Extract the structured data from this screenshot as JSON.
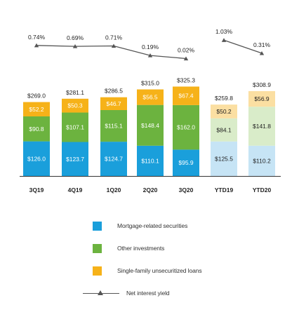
{
  "chart_data": {
    "type": "bar",
    "stacked": true,
    "categories": [
      "3Q19",
      "4Q19",
      "1Q20",
      "2Q20",
      "3Q20",
      "YTD19",
      "YTD20"
    ],
    "series": [
      {
        "name": "Mortgage-related securities",
        "values": [
          126.0,
          123.7,
          124.7,
          110.1,
          95.9,
          125.5,
          110.2
        ],
        "labels": [
          "$126.0",
          "$123.7",
          "$124.7",
          "$110.1",
          "$95.9",
          "$125.5",
          "$110.2"
        ]
      },
      {
        "name": "Other investments",
        "values": [
          90.8,
          107.1,
          115.1,
          148.4,
          162.0,
          84.1,
          141.8
        ],
        "labels": [
          "$90.8",
          "$107.1",
          "$115.1",
          "$148.4",
          "$162.0",
          "$84.1",
          "$141.8"
        ]
      },
      {
        "name": "Single-family unsecuritized loans",
        "values": [
          52.2,
          50.3,
          46.7,
          56.5,
          67.4,
          50.2,
          56.9
        ],
        "labels": [
          "$52.2",
          "$50.3",
          "$46.7",
          "$56.5",
          "$67.4",
          "$50.2",
          "$56.9"
        ]
      }
    ],
    "totals": [
      269.0,
      281.1,
      286.5,
      315.0,
      325.3,
      259.8,
      308.9
    ],
    "total_labels": [
      "$269.0",
      "$281.1",
      "$286.5",
      "$315.0",
      "$325.3",
      "$259.8",
      "$308.9"
    ],
    "line": {
      "name": "Net interest yield",
      "groups": [
        [
          0,
          1,
          2,
          3,
          4
        ],
        [
          5,
          6
        ]
      ],
      "values": [
        0.74,
        0.69,
        0.71,
        0.19,
        0.02,
        1.03,
        0.31
      ],
      "labels": [
        "0.74%",
        "0.69%",
        "0.71%",
        "0.19%",
        "0.02%",
        "1.03%",
        "0.31%"
      ]
    },
    "colors": {
      "mortgage": "#1a9fdb",
      "other": "#6cb33f",
      "loans": "#f6b219",
      "mortgage_light": "#c6e4f5",
      "other_light": "#d9ecc9",
      "loans_light": "#fbdfa2",
      "line": "#555555"
    },
    "light_categories": [
      "YTD19",
      "YTD20"
    ],
    "legend_placement": "bottom",
    "grid": false
  },
  "legend": [
    {
      "label": "Mortgage-related securities",
      "color": "#1a9fdb"
    },
    {
      "label": "Other investments",
      "color": "#6cb33f"
    },
    {
      "label": "Single-family unsecuritized loans",
      "color": "#f6b219"
    },
    {
      "label": "Net interest yield",
      "icon": "line-triangle-marker-icon"
    }
  ]
}
